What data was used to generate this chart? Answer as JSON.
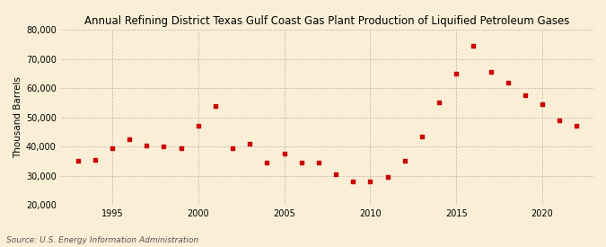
{
  "title": "Annual Refining District Texas Gulf Coast Gas Plant Production of Liquified Petroleum Gases",
  "ylabel": "Thousand Barrels",
  "source": "Source: U.S. Energy Information Administration",
  "background_color": "#faefd6",
  "marker_color": "#cc0000",
  "grid_color": "#b0b0b0",
  "years": [
    1993,
    1994,
    1995,
    1996,
    1997,
    1998,
    1999,
    2000,
    2001,
    2002,
    2003,
    2004,
    2005,
    2006,
    2007,
    2008,
    2009,
    2010,
    2011,
    2012,
    2013,
    2014,
    2015,
    2016,
    2017,
    2018,
    2019,
    2020,
    2021,
    2022
  ],
  "values": [
    35000,
    35500,
    39500,
    42500,
    40500,
    40000,
    39500,
    47000,
    54000,
    39500,
    41000,
    34500,
    37500,
    34500,
    34500,
    30500,
    28000,
    28000,
    29500,
    35000,
    43500,
    55000,
    65000,
    74500,
    65500,
    62000,
    57500,
    54500,
    49000,
    47000
  ],
  "xlim": [
    1992,
    2023
  ],
  "ylim": [
    20000,
    80000
  ],
  "yticks": [
    20000,
    30000,
    40000,
    50000,
    60000,
    70000,
    80000
  ],
  "xticks": [
    1995,
    2000,
    2005,
    2010,
    2015,
    2020
  ],
  "title_fontsize": 8.5,
  "label_fontsize": 7.5,
  "tick_fontsize": 7,
  "source_fontsize": 6.5
}
